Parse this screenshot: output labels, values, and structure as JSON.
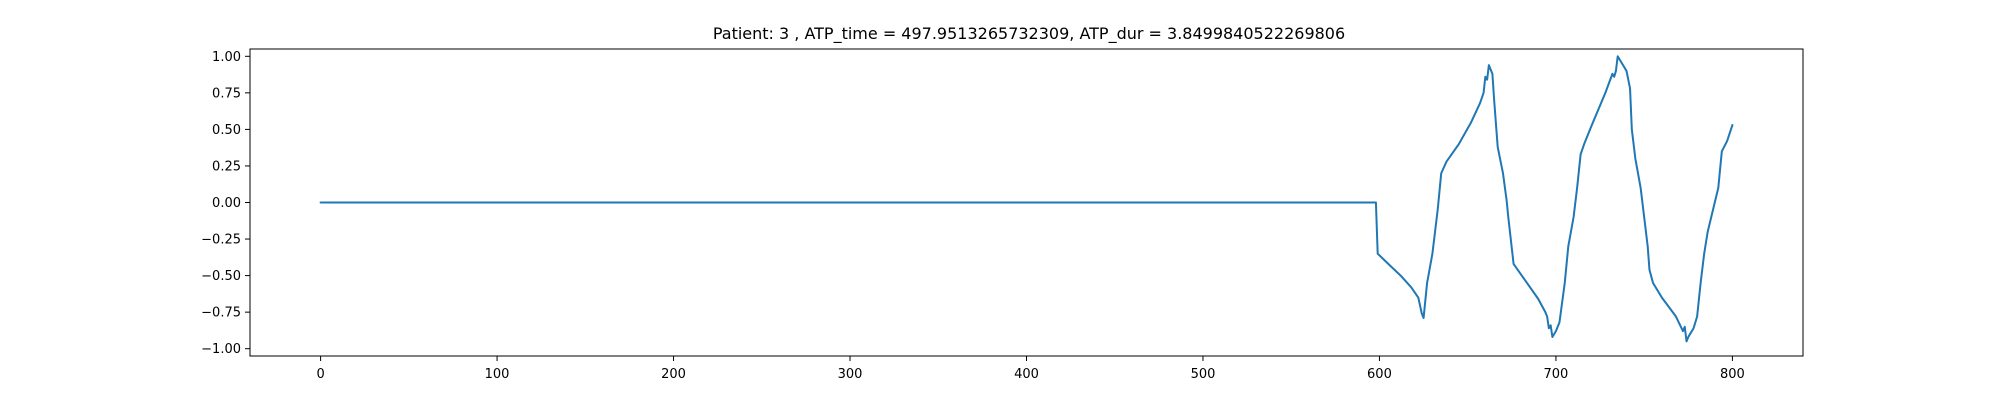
{
  "chart_data": {
    "type": "line",
    "title": "Patient: 3 , ATP_time = 497.9513265732309, ATP_dur = 3.8499840522269806",
    "xlabel": "",
    "ylabel": "",
    "xlim": [
      -40,
      840
    ],
    "ylim": [
      -1.05,
      1.05
    ],
    "grid": false,
    "line_color": "#1f77b4",
    "x_ticks": [
      0,
      100,
      200,
      300,
      400,
      500,
      600,
      700,
      800
    ],
    "y_ticks": [
      -1.0,
      -0.75,
      -0.5,
      -0.25,
      0.0,
      0.25,
      0.5,
      0.75,
      1.0
    ],
    "x_tick_labels": [
      "0",
      "100",
      "200",
      "300",
      "400",
      "500",
      "600",
      "700",
      "800"
    ],
    "y_tick_labels": [
      "−1.00",
      "−0.75",
      "−0.50",
      "−0.25",
      "0.00",
      "0.25",
      "0.50",
      "0.75",
      "1.00"
    ],
    "series": [
      {
        "x": [
          0,
          598,
          599,
          605,
          612,
          618,
          622,
          624,
          625,
          627,
          630,
          633,
          635,
          638,
          645,
          652,
          657,
          659,
          660,
          661,
          662,
          664,
          665,
          667,
          670,
          672,
          673,
          676,
          683,
          690,
          694,
          695,
          696,
          697,
          698,
          700,
          702,
          705,
          707,
          710,
          712,
          714,
          716,
          720,
          728,
          732,
          733,
          734,
          735,
          736,
          737,
          740,
          742,
          743,
          745,
          748,
          750,
          752,
          753,
          755,
          760,
          768,
          772,
          773,
          774,
          775,
          776,
          778,
          780,
          782,
          784,
          786,
          790,
          792,
          794,
          797,
          800
        ],
        "y": [
          0.0,
          0.0,
          -0.35,
          -0.42,
          -0.5,
          -0.58,
          -0.65,
          -0.76,
          -0.79,
          -0.55,
          -0.35,
          -0.05,
          0.2,
          0.28,
          0.4,
          0.55,
          0.68,
          0.75,
          0.86,
          0.84,
          0.94,
          0.88,
          0.7,
          0.38,
          0.2,
          0.02,
          -0.1,
          -0.42,
          -0.54,
          -0.66,
          -0.75,
          -0.78,
          -0.86,
          -0.84,
          -0.92,
          -0.88,
          -0.82,
          -0.55,
          -0.3,
          -0.1,
          0.1,
          0.33,
          0.4,
          0.52,
          0.75,
          0.88,
          0.86,
          0.9,
          1.0,
          0.98,
          0.96,
          0.9,
          0.78,
          0.5,
          0.3,
          0.1,
          -0.1,
          -0.3,
          -0.46,
          -0.55,
          -0.65,
          -0.78,
          -0.88,
          -0.85,
          -0.95,
          -0.92,
          -0.9,
          -0.86,
          -0.78,
          -0.55,
          -0.35,
          -0.2,
          0.0,
          0.1,
          0.35,
          0.42,
          0.53
        ]
      }
    ]
  }
}
